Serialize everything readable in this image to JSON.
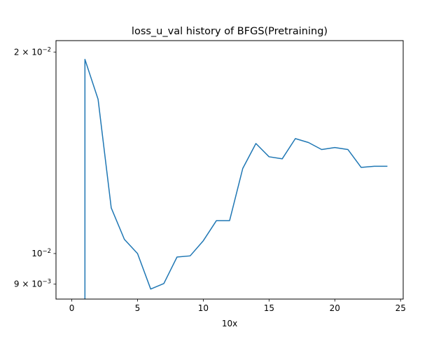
{
  "chart_data": {
    "type": "line",
    "title": "loss_u_val history of BFGS(Pretraining)",
    "xlabel": "10x",
    "ylabel": "",
    "yscale": "log",
    "xlim": [
      -1.2,
      25.2
    ],
    "ylim": [
      0.00855,
      0.0208
    ],
    "grid": false,
    "x_ticks": [
      0,
      5,
      10,
      15,
      20,
      25
    ],
    "x_tick_labels": [
      "0",
      "5",
      "10",
      "15",
      "20",
      "25"
    ],
    "y_ticks": [
      0.02,
      0.01,
      0.009
    ],
    "y_tick_labels": [
      {
        "base": "2 × 10",
        "exp": "−2"
      },
      {
        "base": "10",
        "exp": "−2"
      },
      {
        "base": "9 × 10",
        "exp": "−3"
      }
    ],
    "color": "#1f77b4",
    "series": [
      {
        "x": [
          1,
          1,
          2,
          3,
          4,
          5,
          6,
          7,
          8,
          9,
          10,
          11,
          12,
          13,
          14,
          15,
          16,
          17,
          18,
          19,
          20,
          21,
          22,
          23,
          24
        ],
        "y": [
          0.0081,
          0.0195,
          0.017,
          0.0117,
          0.0105,
          0.01,
          0.00885,
          0.00902,
          0.00988,
          0.00992,
          0.01045,
          0.0112,
          0.0112,
          0.0134,
          0.0146,
          0.01395,
          0.01385,
          0.01485,
          0.01465,
          0.0143,
          0.0144,
          0.0143,
          0.01345,
          0.0135,
          0.0135
        ]
      }
    ]
  }
}
